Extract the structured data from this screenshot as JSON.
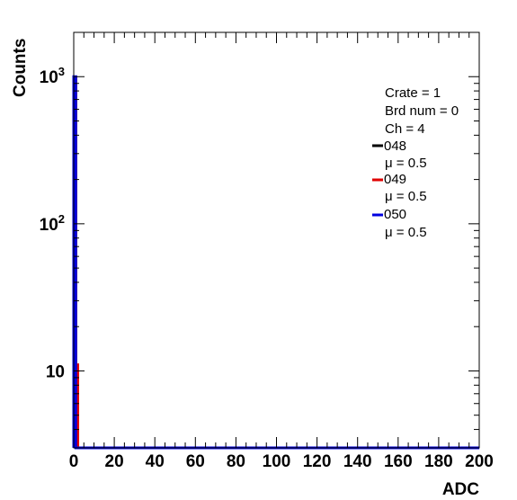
{
  "chart_data": {
    "type": "histogram",
    "xlabel": "ADC",
    "ylabel": "Counts",
    "xlim": [
      0,
      200
    ],
    "ylim": [
      3,
      2000
    ],
    "y_scale": "log",
    "grid": false,
    "legend_position": "top-right",
    "x_ticks": [
      "0",
      "20",
      "40",
      "60",
      "80",
      "100",
      "120",
      "140",
      "160",
      "180",
      "200"
    ],
    "y_ticks": [
      {
        "base": "10",
        "exp": "3"
      },
      {
        "base": "10",
        "exp": "2"
      },
      {
        "base": "10",
        "exp": ""
      }
    ],
    "legend_info": [
      "Crate = 1",
      "Brd num = 0",
      "Ch = 4"
    ],
    "series": [
      {
        "name": "048",
        "stat": "μ = 0.5",
        "color": "#000000",
        "bins": [
          [
            0,
            994
          ],
          [
            1,
            6
          ]
        ]
      },
      {
        "name": "049",
        "stat": "μ = 0.5",
        "color": "#e00000",
        "bins": [
          [
            0,
            989
          ],
          [
            1,
            11
          ]
        ]
      },
      {
        "name": "050",
        "stat": "μ = 0.5",
        "color": "#0000e0",
        "bins": [
          [
            0,
            1000
          ]
        ]
      }
    ]
  }
}
